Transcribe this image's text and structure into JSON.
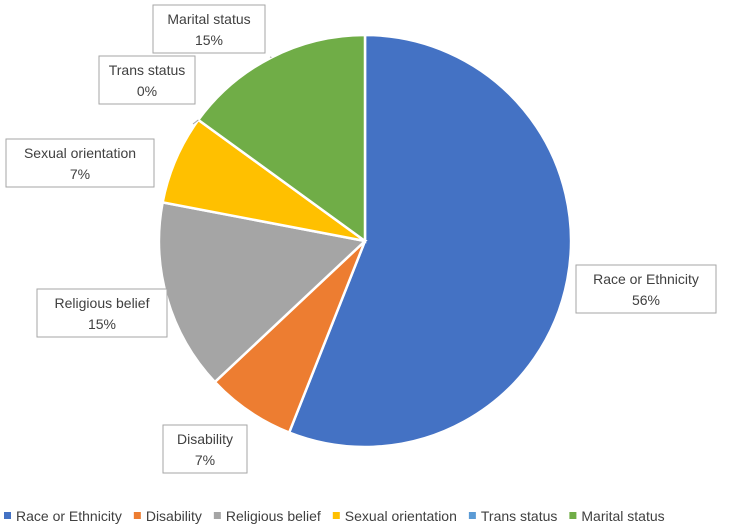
{
  "chart_data": {
    "type": "pie",
    "title": "",
    "categories": [
      "Race or Ethnicity",
      "Disability",
      "Religious belief",
      "Sexual orientation",
      "Trans status",
      "Marital status"
    ],
    "values": [
      56,
      7,
      15,
      7,
      0,
      15
    ],
    "data_labels": [
      "56%",
      "7%",
      "15%",
      "7%",
      "0%",
      "15%"
    ],
    "colors": [
      "#4472C4",
      "#ED7D31",
      "#A5A5A5",
      "#FFC000",
      "#5B9BD5",
      "#70AD47"
    ],
    "legend_position": "bottom"
  }
}
